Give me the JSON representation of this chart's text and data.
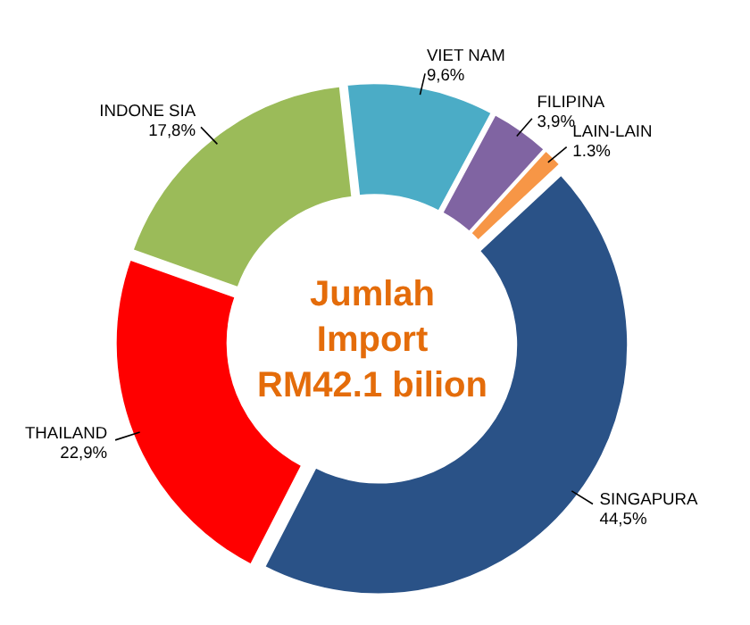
{
  "chart_data": {
    "type": "donut",
    "categories": [
      "SINGAPURA",
      "THAILAND",
      "INDONE SIA",
      "VIET NAM",
      "FILIPINA",
      "LAIN-LAIN"
    ],
    "values": [
      44.5,
      22.9,
      17.8,
      9.6,
      3.9,
      1.3
    ],
    "colors": [
      "#2a5287",
      "#ff0000",
      "#9bbb59",
      "#4bacc6",
      "#8064a2",
      "#f79646"
    ],
    "value_labels": [
      "44,5%",
      "22,9%",
      "17,8%",
      "9,6%",
      "3,9%",
      "1.3%"
    ],
    "annotations": [
      "Jumlah\nImport\nRM42.1 bilion"
    ]
  }
}
